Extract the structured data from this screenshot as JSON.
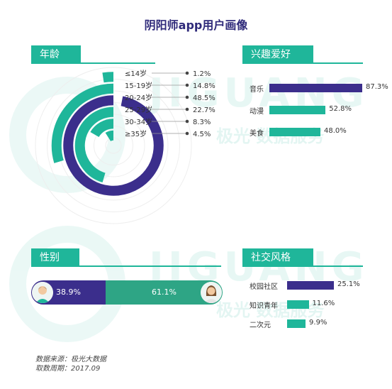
{
  "title": "阴阳师app用户画像",
  "sections": {
    "age": "年龄",
    "interests": "兴趣爱好",
    "gender": "性别",
    "social": "社交风格"
  },
  "watermark": {
    "brand": "JIGUANG",
    "service": "极光 数据服务"
  },
  "chart_data": [
    {
      "type": "radial-bar",
      "title": "年龄",
      "categories": [
        "≤14岁",
        "15-19岁",
        "20-24岁",
        "25-29岁",
        "30-34岁",
        "≥35岁"
      ],
      "values": [
        1.2,
        14.8,
        48.5,
        22.7,
        8.3,
        4.5
      ],
      "value_labels": [
        "1.2%",
        "14.8%",
        "48.5%",
        "22.7%",
        "8.3%",
        "4.5%"
      ],
      "colors": [
        "#1fb69a",
        "#1fb69a",
        "#3b2e8c",
        "#1fb69a",
        "#1fb69a",
        "#1fb69a"
      ]
    },
    {
      "type": "bar",
      "title": "兴趣爱好",
      "categories": [
        "音乐",
        "动漫",
        "美食"
      ],
      "values": [
        87.3,
        52.8,
        48.0
      ],
      "value_labels": [
        "87.3%",
        "52.8%",
        "48.0%"
      ],
      "colors": [
        "#3b2e8c",
        "#1fb69a",
        "#1fb69a"
      ]
    },
    {
      "type": "bar",
      "title": "性别",
      "categories": [
        "男",
        "女"
      ],
      "values": [
        38.9,
        61.1
      ],
      "value_labels": [
        "38.9%",
        "61.1%"
      ],
      "colors": [
        "#3b2e8c",
        "#2ea585"
      ]
    },
    {
      "type": "bar",
      "title": "社交风格",
      "categories": [
        "校园社区",
        "知识青年",
        "二次元"
      ],
      "values": [
        25.1,
        11.6,
        9.9
      ],
      "value_labels": [
        "25.1%",
        "11.6%",
        "9.9%"
      ],
      "colors": [
        "#3b2e8c",
        "#1fb69a",
        "#1fb69a"
      ]
    }
  ],
  "source": {
    "line1": "数据来源：极光大数据",
    "line2": "取数周期：2017.09"
  }
}
